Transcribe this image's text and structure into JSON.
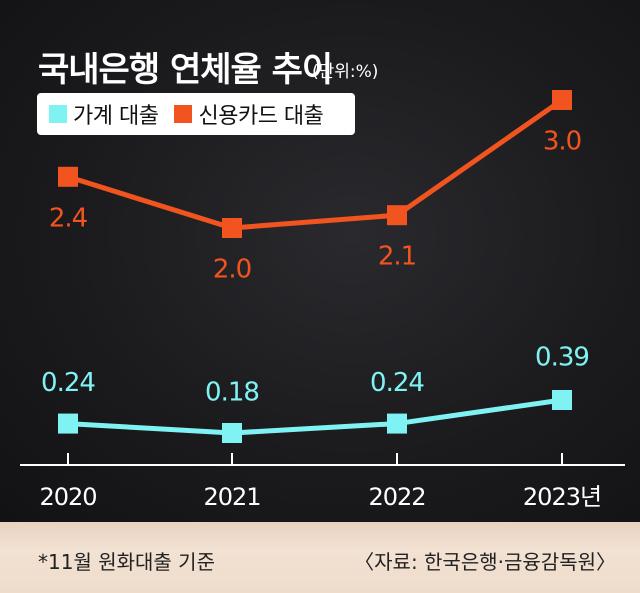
{
  "title": "국내은행 연체율 추이",
  "unit_label": "(단위:%)",
  "footnote": "*11월 원화대출 기준",
  "source": "〈자료: 한국은행·금융감독원〉",
  "colors": {
    "household": "#7ff3f3",
    "credit_card": "#f2541f",
    "background": "#1c1c1f",
    "footer": "#efdccb"
  },
  "chart_data": {
    "type": "line",
    "categories": [
      "2020",
      "2021",
      "2022",
      "2023년"
    ],
    "series": [
      {
        "name": "가계 대출",
        "values": [
          0.24,
          0.18,
          0.24,
          0.39
        ],
        "labels": [
          "0.24",
          "0.18",
          "0.24",
          "0.39"
        ]
      },
      {
        "name": "신용카드 대출",
        "values": [
          2.4,
          2.0,
          2.1,
          3.0
        ],
        "labels": [
          "2.4",
          "2.0",
          "2.1",
          "3.0"
        ]
      }
    ],
    "legend": "top-left",
    "grid": false
  }
}
